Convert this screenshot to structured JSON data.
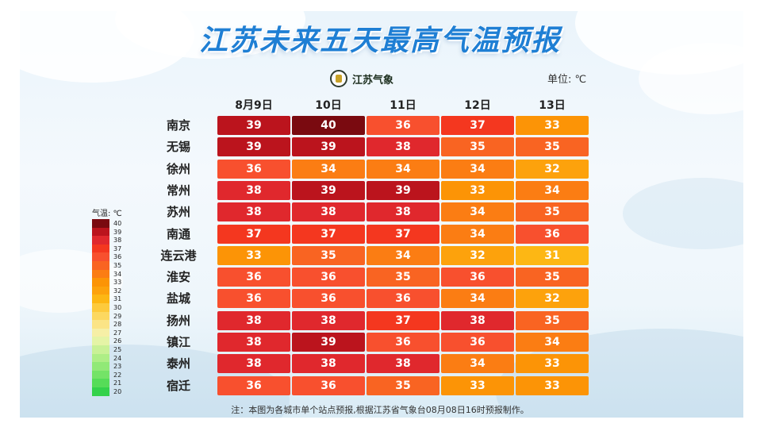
{
  "title": "江苏未来五天最高气温预报",
  "logo_text": "江苏气象",
  "unit_label": "单位: ℃",
  "legend_title": "气温: ℃",
  "note": "注：本图为各城市单个站点预报,根据江苏省气象台08月08日16时预报制作。",
  "chart_data": {
    "type": "heatmap",
    "title": "江苏未来五天最高气温预报",
    "x": [
      "8月9日",
      "10日",
      "11日",
      "12日",
      "13日"
    ],
    "y": [
      "南京",
      "无锡",
      "徐州",
      "常州",
      "苏州",
      "南通",
      "连云港",
      "淮安",
      "盐城",
      "扬州",
      "镇江",
      "泰州",
      "宿迁"
    ],
    "values": [
      [
        39,
        40,
        36,
        37,
        33
      ],
      [
        39,
        39,
        38,
        35,
        35
      ],
      [
        36,
        34,
        34,
        34,
        32
      ],
      [
        38,
        39,
        39,
        33,
        34
      ],
      [
        38,
        38,
        38,
        34,
        35
      ],
      [
        37,
        37,
        37,
        34,
        36
      ],
      [
        33,
        35,
        34,
        32,
        31
      ],
      [
        36,
        36,
        35,
        36,
        35
      ],
      [
        36,
        36,
        36,
        34,
        32
      ],
      [
        38,
        38,
        37,
        38,
        35
      ],
      [
        38,
        39,
        36,
        36,
        34
      ],
      [
        38,
        38,
        38,
        34,
        33
      ],
      [
        36,
        36,
        35,
        33,
        33
      ]
    ],
    "color_scale": {
      "40": "#7a0a10",
      "39": "#bb141d",
      "38": "#e0282d",
      "37": "#f4371f",
      "36": "#f8502e",
      "35": "#f96422",
      "34": "#fb7d13",
      "33": "#fc9406",
      "32": "#fda20c",
      "31": "#fdb714",
      "30": "#fdca3c",
      "29": "#fcd860",
      "28": "#fbe486",
      "27": "#f6efa6",
      "26": "#e5f4a6",
      "25": "#c9f196",
      "24": "#aeee86",
      "23": "#91e977",
      "22": "#74e367",
      "21": "#56dc58",
      "20": "#34d24b"
    },
    "legend": {
      "placement": "left",
      "ticks": [
        40,
        39,
        38,
        37,
        36,
        35,
        34,
        33,
        32,
        31,
        30,
        29,
        28,
        27,
        26,
        25,
        24,
        23,
        22,
        21,
        20
      ]
    }
  }
}
